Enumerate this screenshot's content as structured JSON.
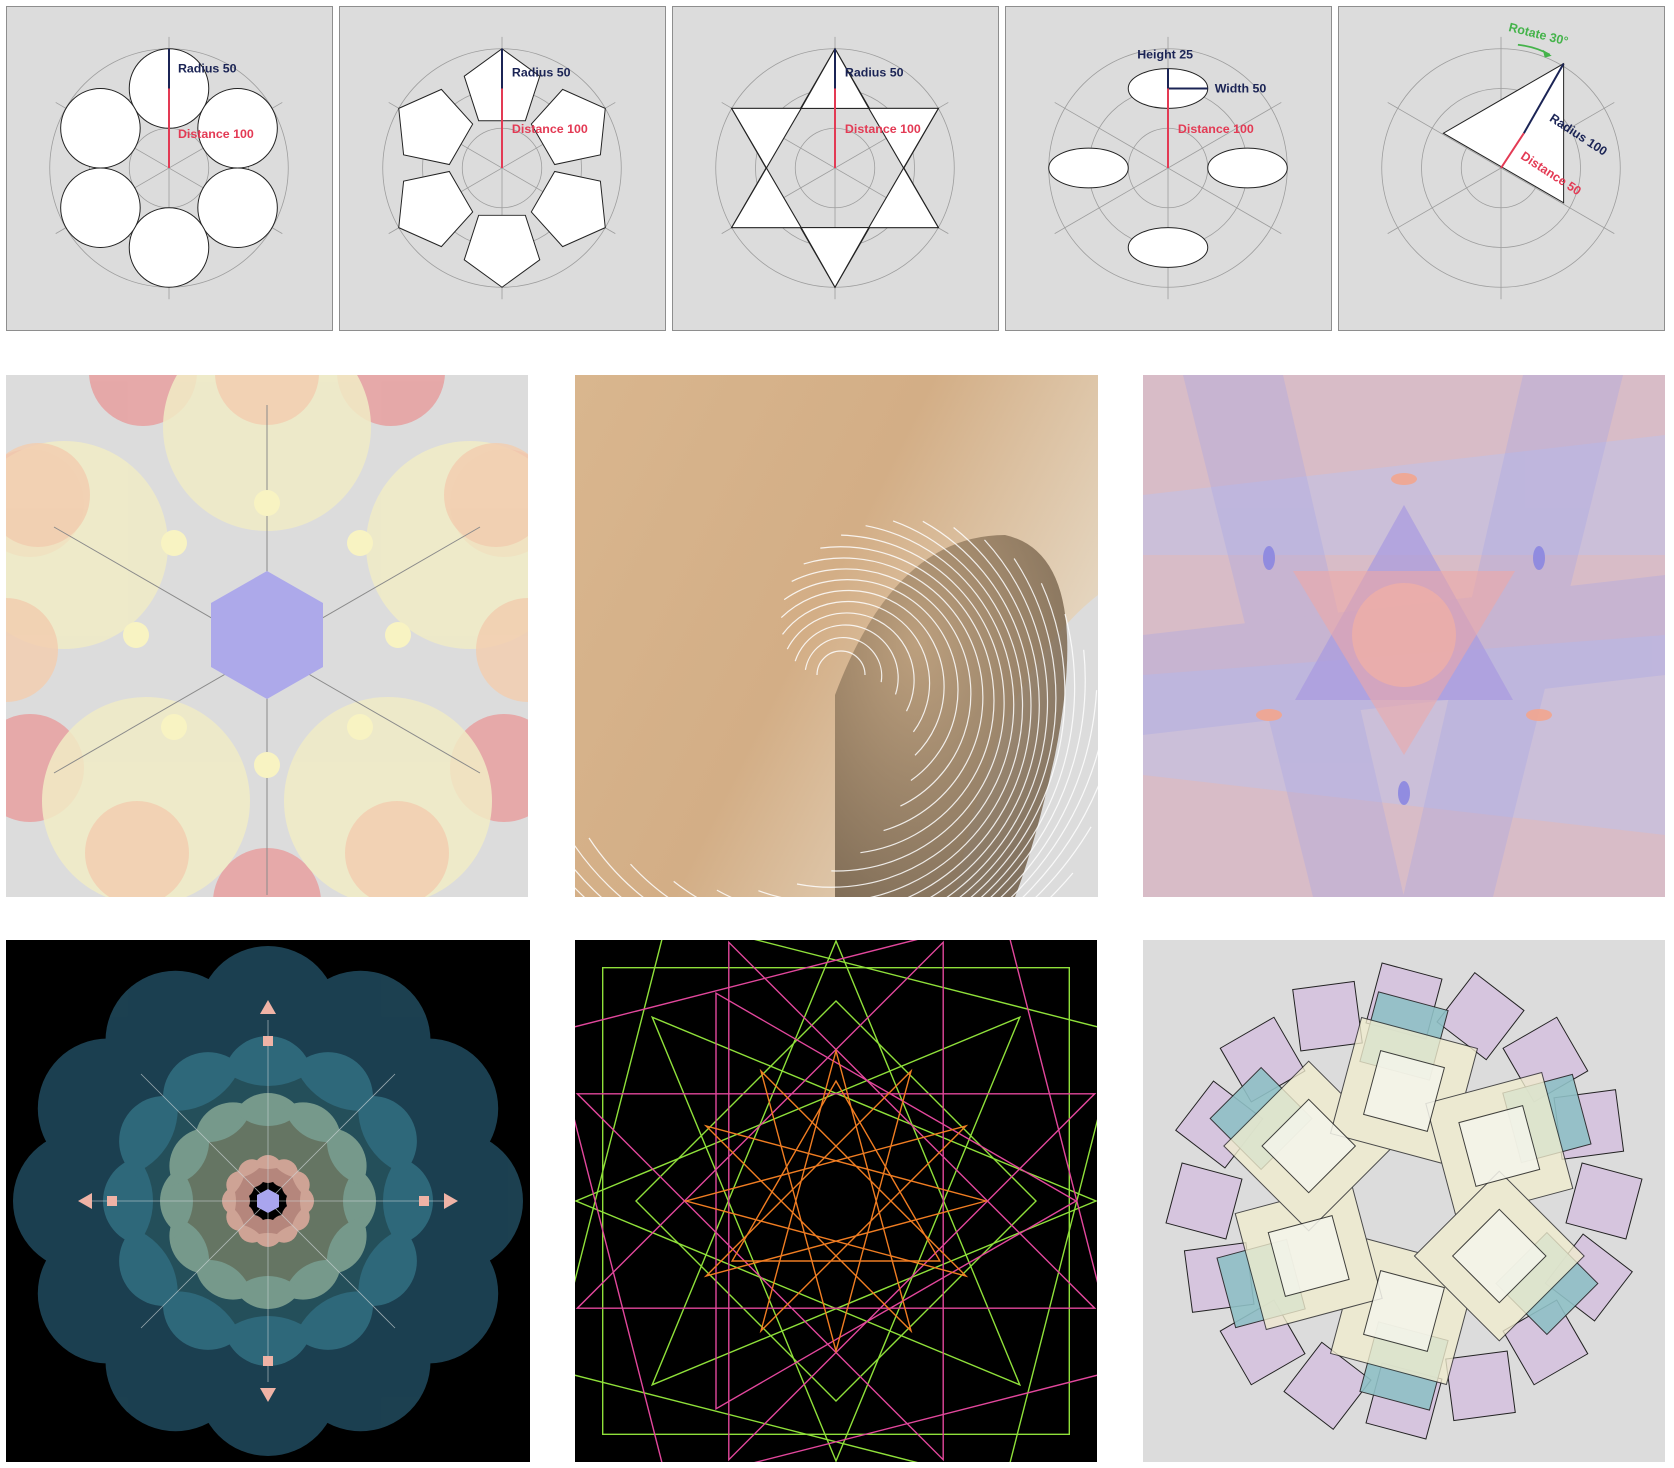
{
  "diagrams": [
    {
      "radius_label": "Radius 50",
      "distance_label": "Distance 100"
    },
    {
      "radius_label": "Radius 50",
      "distance_label": "Distance 100"
    },
    {
      "radius_label": "Radius 50",
      "distance_label": "Distance 100"
    },
    {
      "height_label": "Height 25",
      "width_label": "Width 50",
      "distance_label": "Distance 100"
    },
    {
      "rotate_label": "Rotate 30°",
      "radius_label": "Radius 100",
      "distance_label": "Distance 50"
    }
  ],
  "colors": {
    "tile_bg": "#dcdcdc",
    "navy": "#1b2455",
    "red": "#e33a54",
    "green": "#44b34a"
  }
}
